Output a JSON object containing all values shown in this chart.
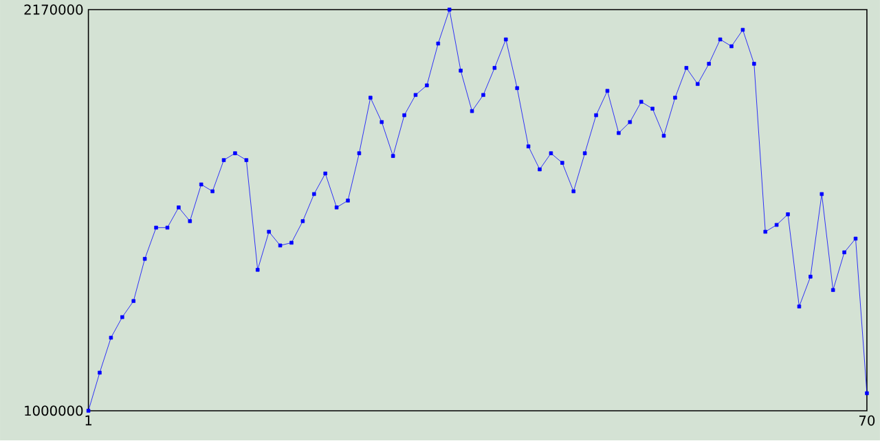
{
  "chart_data": {
    "type": "line",
    "x": [
      1,
      2,
      3,
      4,
      5,
      6,
      7,
      8,
      9,
      10,
      11,
      12,
      13,
      14,
      15,
      16,
      17,
      18,
      19,
      20,
      21,
      22,
      23,
      24,
      25,
      26,
      27,
      28,
      29,
      30,
      31,
      32,
      33,
      34,
      35,
      36,
      37,
      38,
      39,
      40,
      41,
      42,
      43,
      44,
      45,
      46,
      47,
      48,
      49,
      50,
      51,
      52,
      53,
      54,
      55,
      56,
      57,
      58,
      59,
      60,
      61,
      62,
      63,
      64,
      65,
      66,
      67,
      68,
      69,
      70
    ],
    "series": [
      {
        "color": "#0000ff",
        "values": [
          1000000,
          1111000,
          1213000,
          1273000,
          1320000,
          1443000,
          1534000,
          1534000,
          1593000,
          1553000,
          1660000,
          1640000,
          1731000,
          1751000,
          1731000,
          1411000,
          1522000,
          1482000,
          1490000,
          1553000,
          1632000,
          1692000,
          1593000,
          1613000,
          1751000,
          1913000,
          1842000,
          1743000,
          1862000,
          1921000,
          1949000,
          2071000,
          2170000,
          1992000,
          1874000,
          1921000,
          2000000,
          2083000,
          1941000,
          1771000,
          1704000,
          1751000,
          1723000,
          1640000,
          1751000,
          1862000,
          1933000,
          1810000,
          1842000,
          1901000,
          1881000,
          1802000,
          1913000,
          2000000,
          1953000,
          2012000,
          2083000,
          2063000,
          2111000,
          2012000,
          1522000,
          1542000,
          1573000,
          1304000,
          1391000,
          1632000,
          1352000,
          1462000,
          1502000,
          1051000
        ]
      }
    ],
    "xlim": [
      1,
      70
    ],
    "ylim": [
      1000000,
      2170000
    ],
    "xticks": [
      1,
      70
    ],
    "yticks": [
      1000000,
      2170000
    ],
    "marker": "square",
    "line_style": "solid"
  }
}
